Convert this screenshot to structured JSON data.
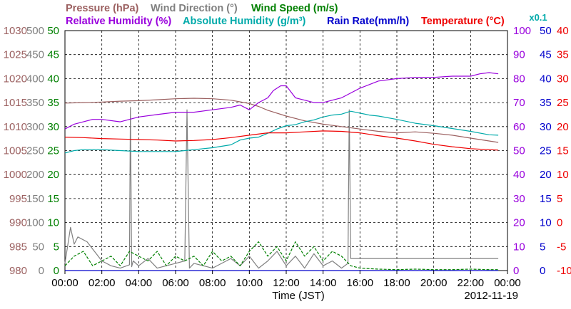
{
  "chart_data": {
    "type": "line",
    "title": "",
    "xlabel": "Time (JST)",
    "date": "2012-11-19",
    "scale_note": "x0.1",
    "grid": true,
    "x_ticks": [
      "00:00",
      "02:00",
      "04:00",
      "06:00",
      "08:00",
      "10:00",
      "12:00",
      "14:00",
      "16:00",
      "18:00",
      "20:00",
      "22:00",
      "00:00"
    ],
    "xlim_hours": [
      0,
      24
    ],
    "legend": [
      {
        "text": "Pressure (hPa)",
        "color": "#9b6060"
      },
      {
        "text": "Wind Direction (°)",
        "color": "#808080"
      },
      {
        "text": "Wind Speed (m/s)",
        "color": "#008000"
      },
      {
        "text": "Relative Humidity (%)",
        "color": "#9900dd"
      },
      {
        "text": "Absolute Humidity (g/m³)",
        "color": "#00aaaa"
      },
      {
        "text": "Rain Rate(mm/h)",
        "color": "#0000cc"
      },
      {
        "text": "Temperature (°C)",
        "color": "#ee0000"
      }
    ],
    "axes": {
      "pressure": {
        "label": "Pressure (hPa)",
        "color": "#9b6060",
        "side": "left",
        "ylim": [
          980,
          1030
        ],
        "ticks": [
          "1030",
          "1025",
          "1020",
          "1015",
          "1010",
          "1005",
          "1000",
          "995",
          "990",
          "985",
          "980"
        ]
      },
      "wind_direction": {
        "label": "Wind Direction (°)",
        "color": "#808080",
        "side": "left",
        "ylim": [
          0,
          500
        ],
        "ticks": [
          "500",
          "450",
          "400",
          "350",
          "300",
          "250",
          "200",
          "150",
          "100",
          "50",
          "0"
        ]
      },
      "wind_speed": {
        "label": "Wind Speed (m/s)",
        "color": "#008000",
        "side": "left",
        "ylim": [
          0,
          50
        ],
        "ticks": [
          "50",
          "45",
          "40",
          "35",
          "30",
          "25",
          "20",
          "15",
          "10",
          "5",
          "0"
        ]
      },
      "relative_humidity": {
        "label": "Relative Humidity (%)",
        "color": "#9900dd",
        "side": "right",
        "ylim": [
          0,
          100
        ],
        "ticks": [
          "100",
          "90",
          "80",
          "70",
          "60",
          "50",
          "40",
          "30",
          "20",
          "10",
          "0"
        ]
      },
      "rain_rate": {
        "label": "Rain Rate(mm/h)",
        "color": "#0000cc",
        "side": "right",
        "ylim": [
          0,
          50
        ],
        "ticks": [
          "50",
          "45",
          "40",
          "35",
          "30",
          "25",
          "20",
          "15",
          "10",
          "5",
          "0"
        ]
      },
      "temperature": {
        "label": "Temperature (°C)",
        "color": "#ee0000",
        "side": "right",
        "ylim": [
          -10,
          40
        ],
        "ticks": [
          "40",
          "35",
          "30",
          "25",
          "20",
          "15",
          "10",
          "5",
          "0",
          "-5",
          "-10"
        ]
      }
    },
    "series": [
      {
        "name": "Pressure (hPa)",
        "axis": "pressure",
        "color": "#9b6060",
        "x": [
          0,
          1,
          2,
          3,
          4,
          5,
          6,
          7,
          8,
          9,
          10,
          10.5,
          11,
          12,
          13,
          14,
          15,
          16,
          17,
          18,
          19,
          20,
          21,
          22,
          23,
          23.5
        ],
        "y": [
          1014.9,
          1015.0,
          1015.1,
          1015.3,
          1015.4,
          1015.6,
          1015.8,
          1015.9,
          1015.8,
          1015.5,
          1014.8,
          1014.2,
          1013.4,
          1012.2,
          1011.2,
          1010.5,
          1010.0,
          1009.5,
          1009.0,
          1008.7,
          1008.9,
          1008.6,
          1008.2,
          1007.6,
          1007.0,
          1006.7
        ]
      },
      {
        "name": "Wind Direction (°)",
        "axis": "wind_direction",
        "color": "#808080",
        "x": [
          0,
          0.3,
          0.5,
          0.7,
          1.2,
          1.6,
          2,
          2.5,
          3,
          3.5,
          3.55,
          3.62,
          3.7,
          4,
          4.5,
          5,
          6,
          6.5,
          6.62,
          6.75,
          7,
          8,
          9,
          9.5,
          10,
          10.5,
          11,
          11.5,
          12,
          12.5,
          13,
          13.5,
          14,
          14.5,
          15,
          15.35,
          15.42,
          15.5,
          16,
          18,
          20,
          22,
          23.5
        ],
        "y": [
          15,
          90,
          55,
          70,
          60,
          40,
          20,
          10,
          5,
          12,
          340,
          8,
          20,
          10,
          25,
          5,
          15,
          20,
          335,
          5,
          15,
          5,
          25,
          10,
          30,
          5,
          20,
          40,
          10,
          30,
          5,
          35,
          10,
          20,
          5,
          15,
          335,
          25,
          25,
          25,
          25,
          25,
          25
        ]
      },
      {
        "name": "Wind Speed (m/s)",
        "axis": "wind_speed",
        "color": "#008000",
        "x": [
          0,
          0.5,
          1,
          1.5,
          2,
          2.5,
          3,
          3.5,
          4,
          4.5,
          5,
          5.5,
          6,
          6.5,
          7,
          7.5,
          8,
          8.5,
          9,
          9.5,
          10,
          10.5,
          11,
          11.5,
          12,
          12.5,
          13,
          13.5,
          14,
          14.5,
          15,
          15.5,
          16,
          17,
          18,
          19,
          20,
          21,
          22,
          23,
          23.5
        ],
        "y": [
          1,
          3,
          4,
          1,
          2,
          3,
          1,
          4,
          3,
          2,
          4,
          1,
          3,
          2,
          3,
          1,
          4,
          2,
          3,
          1,
          4,
          6,
          3,
          5,
          2,
          6,
          3,
          5,
          2,
          4,
          3,
          1,
          0.5,
          0.3,
          0.2,
          0.3,
          0.2,
          0.2,
          0.3,
          0.2,
          0.2
        ]
      },
      {
        "name": "Relative Humidity (%)",
        "axis": "relative_humidity",
        "color": "#9900dd",
        "x": [
          0,
          0.5,
          1,
          1.5,
          2,
          3,
          4,
          5,
          6,
          7,
          8,
          9,
          9.5,
          10,
          10.5,
          11,
          11.3,
          11.7,
          12,
          12.3,
          12.5,
          13,
          13.5,
          14,
          14.5,
          15,
          15.5,
          16,
          17,
          18,
          19,
          20,
          21,
          22,
          22.5,
          23,
          23.5
        ],
        "y": [
          59,
          61,
          62,
          63,
          63,
          62,
          64,
          65,
          66,
          66,
          67,
          68,
          69,
          67,
          70,
          72,
          75,
          77,
          77,
          74,
          72,
          71,
          70,
          70,
          71,
          72,
          74,
          76,
          79,
          80,
          80.5,
          80.5,
          81,
          81,
          82,
          82.5,
          82
        ]
      },
      {
        "name": "Absolute Humidity (g/m³)",
        "axis": "rain_rate",
        "color": "#00aaaa",
        "x": [
          0,
          0.5,
          1,
          2,
          3,
          4,
          5,
          6,
          7,
          8,
          9,
          9.5,
          10,
          10.5,
          11,
          11.5,
          12,
          12.5,
          13,
          13.5,
          14,
          14.5,
          15,
          15.5,
          16,
          16.5,
          17,
          18,
          19,
          20,
          21,
          22,
          23,
          23.5
        ],
        "y": [
          24.5,
          25,
          25.2,
          25.2,
          25,
          24.8,
          24.8,
          24.8,
          25.2,
          25.6,
          26.2,
          27.2,
          27.6,
          27.8,
          28.6,
          29.5,
          30.2,
          30.4,
          31,
          31.4,
          32,
          32.4,
          32.6,
          33.2,
          32.8,
          32.4,
          32.2,
          31.5,
          30.7,
          30.2,
          29.6,
          29,
          28.3,
          28.2
        ]
      },
      {
        "name": "Rain Rate(mm/h)",
        "axis": "rain_rate",
        "color": "#0000cc",
        "x": [
          0,
          23.5
        ],
        "y": [
          0,
          0
        ]
      },
      {
        "name": "Temperature (°C)",
        "axis": "temperature",
        "color": "#ee0000",
        "x": [
          0,
          1,
          2,
          3,
          4,
          5,
          6,
          7,
          8,
          9,
          10,
          11,
          12,
          13,
          14,
          15,
          16,
          17,
          18,
          19,
          20,
          21,
          22,
          23,
          23.5
        ],
        "y": [
          17.8,
          17.7,
          17.5,
          17.4,
          17.3,
          17.2,
          17.0,
          17.1,
          17.3,
          17.7,
          18.2,
          18.7,
          18.7,
          18.9,
          19.1,
          19.0,
          18.7,
          18.1,
          17.6,
          17.0,
          16.3,
          15.8,
          15.4,
          15.2,
          15.1
        ]
      }
    ]
  }
}
